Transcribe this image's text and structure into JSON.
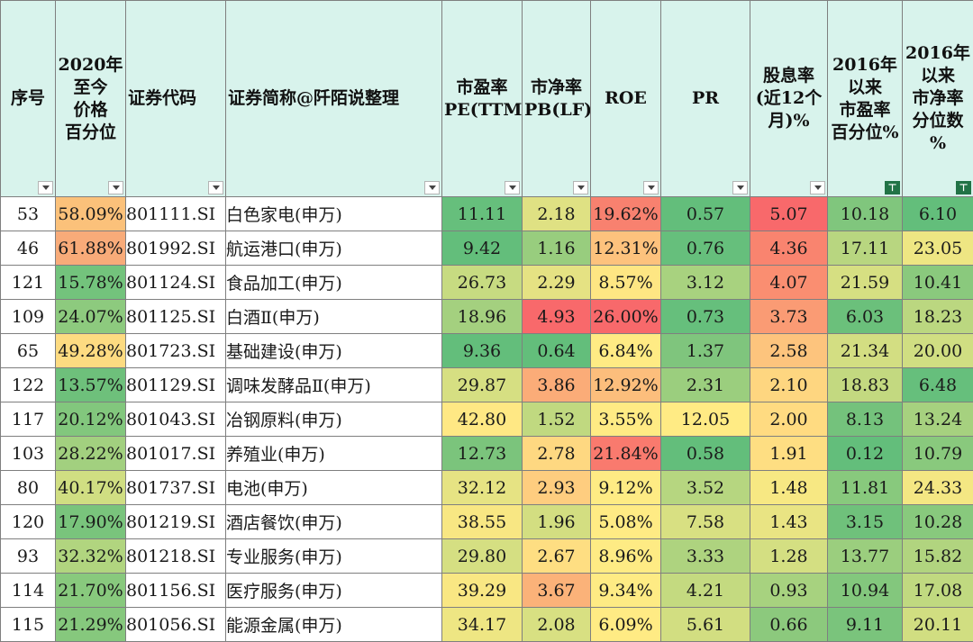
{
  "columns": [
    {
      "key": "seq",
      "label": "序号",
      "filtered": false
    },
    {
      "key": "price_pct",
      "label": "2020年\n至今\n价格\n百分位",
      "filtered": false
    },
    {
      "key": "code",
      "label": "证券代码",
      "filtered": false
    },
    {
      "key": "name",
      "label": "证券简称@阡陌说整理",
      "filtered": false
    },
    {
      "key": "pe",
      "label": "市盈率\nPE(TTM)",
      "filtered": false
    },
    {
      "key": "pb",
      "label": "市净率\nPB(LF)",
      "filtered": false
    },
    {
      "key": "roe",
      "label": "ROE",
      "filtered": false
    },
    {
      "key": "pr",
      "label": "PR",
      "filtered": false
    },
    {
      "key": "div",
      "label": "股息率\n(近12个\n月)%",
      "filtered": false
    },
    {
      "key": "pe_pct",
      "label": "2016年\n以来\n市盈率\n百分位%",
      "filtered": true
    },
    {
      "key": "pb_pct",
      "label": "2016年\n以来\n市净率\n分位数\n%",
      "filtered": true
    }
  ],
  "rows": [
    {
      "seq": "53",
      "price_pct": "58.09%",
      "code": "801111.SI",
      "name": "白色家电(申万)",
      "pe": "11.11",
      "pb": "2.18",
      "roe": "19.62%",
      "pr": "0.57",
      "div": "5.07",
      "pe_pct": "10.18",
      "pb_pct": "6.10"
    },
    {
      "seq": "46",
      "price_pct": "61.88%",
      "code": "801992.SI",
      "name": "航运港口(申万)",
      "pe": "9.42",
      "pb": "1.16",
      "roe": "12.31%",
      "pr": "0.76",
      "div": "4.36",
      "pe_pct": "17.11",
      "pb_pct": "23.05"
    },
    {
      "seq": "121",
      "price_pct": "15.78%",
      "code": "801124.SI",
      "name": "食品加工(申万)",
      "pe": "26.73",
      "pb": "2.29",
      "roe": "8.57%",
      "pr": "3.12",
      "div": "4.07",
      "pe_pct": "21.59",
      "pb_pct": "10.41"
    },
    {
      "seq": "109",
      "price_pct": "24.07%",
      "code": "801125.SI",
      "name": "白酒Ⅱ(申万)",
      "pe": "18.96",
      "pb": "4.93",
      "roe": "26.00%",
      "pr": "0.73",
      "div": "3.73",
      "pe_pct": "6.03",
      "pb_pct": "18.23"
    },
    {
      "seq": "65",
      "price_pct": "49.28%",
      "code": "801723.SI",
      "name": "基础建设(申万)",
      "pe": "9.36",
      "pb": "0.64",
      "roe": "6.84%",
      "pr": "1.37",
      "div": "2.58",
      "pe_pct": "21.34",
      "pb_pct": "20.00"
    },
    {
      "seq": "122",
      "price_pct": "13.57%",
      "code": "801129.SI",
      "name": "调味发酵品Ⅱ(申万)",
      "pe": "29.87",
      "pb": "3.86",
      "roe": "12.92%",
      "pr": "2.31",
      "div": "2.10",
      "pe_pct": "18.83",
      "pb_pct": "6.48"
    },
    {
      "seq": "117",
      "price_pct": "20.12%",
      "code": "801043.SI",
      "name": "冶钢原料(申万)",
      "pe": "42.80",
      "pb": "1.52",
      "roe": "3.55%",
      "pr": "12.05",
      "div": "2.00",
      "pe_pct": "8.13",
      "pb_pct": "13.24"
    },
    {
      "seq": "103",
      "price_pct": "28.22%",
      "code": "801017.SI",
      "name": "养殖业(申万)",
      "pe": "12.73",
      "pb": "2.78",
      "roe": "21.84%",
      "pr": "0.58",
      "div": "1.91",
      "pe_pct": "0.12",
      "pb_pct": "10.79"
    },
    {
      "seq": "80",
      "price_pct": "40.17%",
      "code": "801737.SI",
      "name": "电池(申万)",
      "pe": "32.12",
      "pb": "2.93",
      "roe": "9.12%",
      "pr": "3.52",
      "div": "1.48",
      "pe_pct": "11.81",
      "pb_pct": "24.33"
    },
    {
      "seq": "120",
      "price_pct": "17.90%",
      "code": "801219.SI",
      "name": "酒店餐饮(申万)",
      "pe": "38.55",
      "pb": "1.96",
      "roe": "5.08%",
      "pr": "7.58",
      "div": "1.43",
      "pe_pct": "3.15",
      "pb_pct": "10.28"
    },
    {
      "seq": "93",
      "price_pct": "32.32%",
      "code": "801218.SI",
      "name": "专业服务(申万)",
      "pe": "29.80",
      "pb": "2.67",
      "roe": "8.96%",
      "pr": "3.33",
      "div": "1.28",
      "pe_pct": "13.77",
      "pb_pct": "15.82"
    },
    {
      "seq": "114",
      "price_pct": "21.70%",
      "code": "801156.SI",
      "name": "医疗服务(申万)",
      "pe": "39.29",
      "pb": "3.67",
      "roe": "9.34%",
      "pr": "4.21",
      "div": "0.93",
      "pe_pct": "10.94",
      "pb_pct": "17.08"
    },
    {
      "seq": "115",
      "price_pct": "21.29%",
      "code": "801056.SI",
      "name": "能源金属(申万)",
      "pe": "34.17",
      "pb": "2.08",
      "roe": "6.09%",
      "pr": "5.61",
      "div": "0.66",
      "pe_pct": "9.11",
      "pb_pct": "20.11"
    }
  ],
  "cell_colors": {
    "price_pct": [
      "#fbc17a",
      "#f8ab79",
      "#73c37c",
      "#8dca7e",
      "#fddb81",
      "#6ec07b",
      "#82c77d",
      "#a2d07f",
      "#d0de82",
      "#79c47c",
      "#b1d57f",
      "#88c97d",
      "#86c87d"
    ],
    "pe": [
      "#66bf7c",
      "#63be7b",
      "#c7db81",
      "#a4d07f",
      "#63be7b",
      "#d6df82",
      "#ffe884",
      "#7bc47c",
      "#e6e383",
      "#f8e783",
      "#d5df82",
      "#f9e783",
      "#eee683"
    ],
    "pb": [
      "#dfe183",
      "#98cd7e",
      "#e5e283",
      "#f8696b",
      "#63be7b",
      "#fbac78",
      "#c0d980",
      "#fed881",
      "#fecd7f",
      "#d3de81",
      "#fede82",
      "#fbb279",
      "#d8e082"
    ],
    "roe": [
      "#f8816f",
      "#fdc27d",
      "#fee683",
      "#f8696b",
      "#ffeb84",
      "#fcbe7c",
      "#ffeb84",
      "#f97a6e",
      "#feeb84",
      "#ffeb84",
      "#feeb84",
      "#feeb84",
      "#ffeb84"
    ],
    "pr": [
      "#63be7b",
      "#66bf7c",
      "#a8d27f",
      "#66bf7c",
      "#7fc57d",
      "#9bce7e",
      "#ffeb84",
      "#63be7b",
      "#b6d680",
      "#d8e082",
      "#aed37f",
      "#c4da80",
      "#d2de81"
    ],
    "div": [
      "#f8696b",
      "#f9846f",
      "#fa8e71",
      "#fa9b74",
      "#fdc47d",
      "#fed680",
      "#ffdb81",
      "#fede82",
      "#f7e883",
      "#e9e483",
      "#d4df82",
      "#a7d27f",
      "#8cc97d"
    ],
    "pe_pct": [
      "#80c67d",
      "#b8d680",
      "#d6df82",
      "#6bc07b",
      "#d3de82",
      "#c3d980",
      "#74c27c",
      "#63be7b",
      "#88c97d",
      "#6fc17b",
      "#9bce7e",
      "#83c77d",
      "#7ac47c"
    ],
    "pb_pct": [
      "#63be7b",
      "#eee683",
      "#8ac97d",
      "#bbd780",
      "#d0de82",
      "#66bf7c",
      "#a6d17f",
      "#89c97d",
      "#f4e783",
      "#88c97d",
      "#b1d47f",
      "#c0d980",
      "#d1de81"
    ]
  },
  "icons": {
    "dropdown": "dropdown-arrow-icon",
    "filtered": "filter-active-icon"
  }
}
